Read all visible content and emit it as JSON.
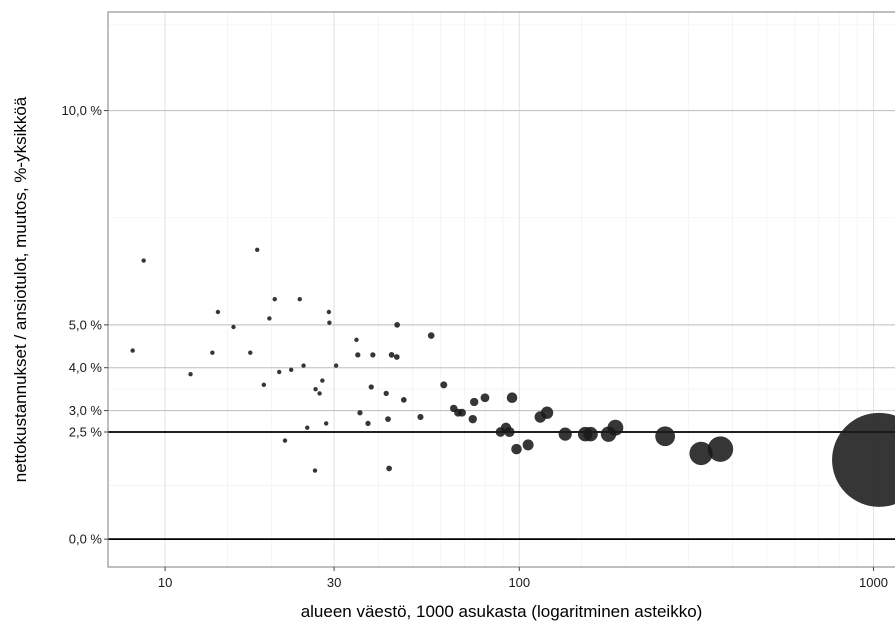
{
  "chart_data": {
    "type": "scatter",
    "title": "",
    "xlabel": "alueen väestö, 1000 asukasta (logaritminen asteikko)",
    "ylabel": "nettokustannukset / ansiotulot, muutos, %-yksikköä",
    "x_scale": "log",
    "xlim": [
      6.9,
      1150
    ],
    "ylim": [
      -0.65,
      12.3
    ],
    "x_ticks": [
      {
        "value": 10,
        "label": "10"
      },
      {
        "value": 30,
        "label": "30"
      },
      {
        "value": 100,
        "label": "100"
      },
      {
        "value": 1000,
        "label": "1000"
      }
    ],
    "y_ticks": [
      {
        "value": 0,
        "label": "0,0 %"
      },
      {
        "value": 2.5,
        "label": "2,5 %"
      },
      {
        "value": 3,
        "label": "3,0 %"
      },
      {
        "value": 4,
        "label": "4,0 %"
      },
      {
        "value": 5,
        "label": "5,0 %"
      },
      {
        "value": 10,
        "label": "10,0 %"
      }
    ],
    "reference_lines_y": [
      0,
      2.5
    ],
    "grid": true,
    "point_color": "#1a1a1a",
    "points": [
      {
        "x": 8.1,
        "y": 4.4
      },
      {
        "x": 8.7,
        "y": 6.5
      },
      {
        "x": 11.8,
        "y": 3.85
      },
      {
        "x": 13.6,
        "y": 4.35
      },
      {
        "x": 14.1,
        "y": 5.3
      },
      {
        "x": 15.6,
        "y": 4.95
      },
      {
        "x": 17.4,
        "y": 4.35
      },
      {
        "x": 18.2,
        "y": 6.75
      },
      {
        "x": 19.0,
        "y": 3.6
      },
      {
        "x": 19.7,
        "y": 5.15
      },
      {
        "x": 20.4,
        "y": 5.6
      },
      {
        "x": 21.0,
        "y": 3.9
      },
      {
        "x": 21.8,
        "y": 2.3
      },
      {
        "x": 22.7,
        "y": 3.95
      },
      {
        "x": 24.0,
        "y": 5.6
      },
      {
        "x": 24.6,
        "y": 4.05
      },
      {
        "x": 25.2,
        "y": 2.6
      },
      {
        "x": 26.5,
        "y": 1.6
      },
      {
        "x": 26.6,
        "y": 3.5
      },
      {
        "x": 27.3,
        "y": 3.4
      },
      {
        "x": 27.8,
        "y": 3.7
      },
      {
        "x": 28.5,
        "y": 2.7
      },
      {
        "x": 29.0,
        "y": 5.3
      },
      {
        "x": 29.1,
        "y": 5.05
      },
      {
        "x": 30.4,
        "y": 4.05
      },
      {
        "x": 34.7,
        "y": 4.65
      },
      {
        "x": 35.0,
        "y": 4.3
      },
      {
        "x": 35.5,
        "y": 2.95
      },
      {
        "x": 37.4,
        "y": 2.7
      },
      {
        "x": 38.2,
        "y": 3.55
      },
      {
        "x": 38.6,
        "y": 4.3
      },
      {
        "x": 42.1,
        "y": 3.4
      },
      {
        "x": 42.6,
        "y": 2.8
      },
      {
        "x": 42.9,
        "y": 1.65
      },
      {
        "x": 43.6,
        "y": 4.3
      },
      {
        "x": 45.1,
        "y": 4.25
      },
      {
        "x": 45.2,
        "y": 5.0
      },
      {
        "x": 47.2,
        "y": 3.25
      },
      {
        "x": 52.6,
        "y": 2.85
      },
      {
        "x": 56.4,
        "y": 4.75
      },
      {
        "x": 61.2,
        "y": 3.6
      },
      {
        "x": 65.3,
        "y": 3.05
      },
      {
        "x": 67.2,
        "y": 2.95
      },
      {
        "x": 68.9,
        "y": 2.95
      },
      {
        "x": 73.9,
        "y": 2.8
      },
      {
        "x": 74.6,
        "y": 3.2
      },
      {
        "x": 80.0,
        "y": 3.3
      },
      {
        "x": 88.5,
        "y": 2.5
      },
      {
        "x": 91.7,
        "y": 2.6
      },
      {
        "x": 93.8,
        "y": 2.5
      },
      {
        "x": 95.4,
        "y": 3.3
      },
      {
        "x": 98.2,
        "y": 2.1
      },
      {
        "x": 105.9,
        "y": 2.2
      },
      {
        "x": 114.6,
        "y": 2.85
      },
      {
        "x": 119.8,
        "y": 2.95
      },
      {
        "x": 134.8,
        "y": 2.45
      },
      {
        "x": 153.5,
        "y": 2.45
      },
      {
        "x": 158.9,
        "y": 2.45
      },
      {
        "x": 178.6,
        "y": 2.45
      },
      {
        "x": 186.8,
        "y": 2.6
      },
      {
        "x": 258.1,
        "y": 2.4
      },
      {
        "x": 326.0,
        "y": 2.0
      },
      {
        "x": 369.7,
        "y": 2.1
      },
      {
        "x": 1036.8,
        "y": 1.85
      }
    ],
    "sizes": [
      1,
      1,
      1,
      1,
      1,
      1,
      1,
      1,
      1,
      1,
      1,
      1,
      1,
      1,
      1,
      1,
      1,
      1,
      1,
      1,
      1,
      1,
      1,
      1,
      1,
      1,
      1.2,
      1.2,
      1.2,
      1.2,
      1.2,
      1.2,
      1.3,
      1.3,
      1.3,
      1.3,
      1.3,
      1.3,
      1.4,
      1.5,
      1.6,
      1.7,
      1.8,
      1.8,
      1.9,
      1.9,
      2.0,
      2.2,
      2.3,
      2.3,
      2.4,
      2.4,
      2.5,
      2.6,
      2.8,
      3.0,
      3.3,
      3.3,
      3.5,
      3.6,
      4.5,
      5.3,
      5.8,
      14
    ]
  }
}
